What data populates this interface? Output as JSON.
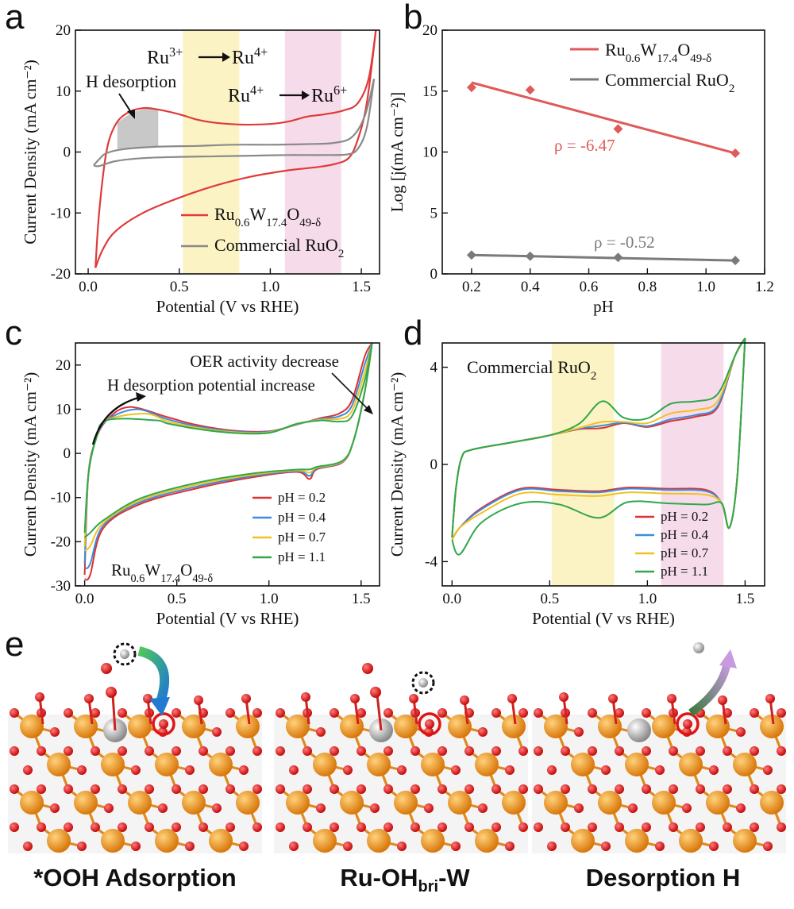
{
  "panels": {
    "a": {
      "letter": "a"
    },
    "b": {
      "letter": "b"
    },
    "c": {
      "letter": "c"
    },
    "d": {
      "letter": "d"
    },
    "e": {
      "letter": "e"
    }
  },
  "chart_data": [
    {
      "id": "a",
      "type": "line",
      "xlabel": "Potential (V vs RHE)",
      "ylabel": "Current Density (mA cm⁻²)",
      "xlim": [
        -0.07,
        1.6
      ],
      "ylim": [
        -20,
        20
      ],
      "xticks": [
        "0.0",
        "0.5",
        "1.0",
        "1.5"
      ],
      "yticks": [
        "-20",
        "-10",
        "0",
        "10",
        "20"
      ],
      "annotations": {
        "h_desorption": "H desorption",
        "ru3": "Ru",
        "ru3_sup": "3+",
        "ru4a": "Ru",
        "ru4a_sup": "4+",
        "ru4b": "Ru",
        "ru4b_sup": "4+",
        "ru6": "Ru",
        "ru6_sup": "6+"
      },
      "bands": [
        {
          "x0": 0.52,
          "x1": 0.83,
          "color": "#fbf3c4"
        },
        {
          "x0": 1.08,
          "x1": 1.39,
          "color": "#f6dcea"
        }
      ],
      "legend": [
        {
          "main": "Ru",
          "s1": "0.6",
          "m2": "W",
          "s2": "17.4",
          "m3": "O",
          "s3": "49-δ",
          "color": "#e03a3a"
        },
        {
          "main": "Commercial RuO",
          "s1": "2",
          "color": "#8a8a8a"
        }
      ],
      "series": [
        {
          "color": "#e03a3a",
          "upper": [
            [
              0.04,
              -19
            ],
            [
              0.06,
              -10
            ],
            [
              0.1,
              0
            ],
            [
              0.15,
              4.5
            ],
            [
              0.22,
              6.5
            ],
            [
              0.3,
              7.2
            ],
            [
              0.38,
              7
            ],
            [
              0.5,
              6.2
            ],
            [
              0.6,
              5.3
            ],
            [
              0.7,
              4.8
            ],
            [
              0.85,
              4.5
            ],
            [
              1.0,
              4.6
            ],
            [
              1.1,
              5.0
            ],
            [
              1.2,
              5.8
            ],
            [
              1.3,
              6.2
            ],
            [
              1.4,
              6.8
            ],
            [
              1.48,
              8
            ],
            [
              1.54,
              12
            ],
            [
              1.58,
              20
            ]
          ],
          "lower": [
            [
              0.04,
              -19
            ],
            [
              0.08,
              -16
            ],
            [
              0.15,
              -13
            ],
            [
              0.3,
              -10
            ],
            [
              0.5,
              -7.5
            ],
            [
              0.7,
              -5.5
            ],
            [
              0.9,
              -4
            ],
            [
              1.1,
              -3
            ],
            [
              1.25,
              -2.5
            ],
            [
              1.35,
              -2
            ],
            [
              1.43,
              -1
            ],
            [
              1.48,
              2
            ],
            [
              1.53,
              8
            ],
            [
              1.58,
              20
            ]
          ]
        },
        {
          "color": "#8a8a8a",
          "upper": [
            [
              0.03,
              -2.2
            ],
            [
              0.06,
              -1.2
            ],
            [
              0.1,
              -0.2
            ],
            [
              0.2,
              0.5
            ],
            [
              0.4,
              0.9
            ],
            [
              0.6,
              1.0
            ],
            [
              0.8,
              1.2
            ],
            [
              1.0,
              1.2
            ],
            [
              1.2,
              1.3
            ],
            [
              1.35,
              1.5
            ],
            [
              1.45,
              2.5
            ],
            [
              1.52,
              6
            ],
            [
              1.57,
              12
            ]
          ],
          "lower": [
            [
              0.03,
              -2.2
            ],
            [
              0.06,
              -2.3
            ],
            [
              0.15,
              -1.5
            ],
            [
              0.3,
              -1.0
            ],
            [
              0.5,
              -0.8
            ],
            [
              0.7,
              -0.7
            ],
            [
              0.9,
              -0.6
            ],
            [
              1.1,
              -0.5
            ],
            [
              1.3,
              -0.5
            ],
            [
              1.42,
              -0.4
            ],
            [
              1.48,
              0.5
            ],
            [
              1.53,
              4
            ],
            [
              1.57,
              12
            ]
          ]
        }
      ]
    },
    {
      "id": "b",
      "type": "scatter",
      "xlabel": "pH",
      "ylabel": "Log [j(mA cm⁻²)]",
      "xlim": [
        0.1,
        1.2
      ],
      "ylim": [
        0,
        20
      ],
      "xticks": [
        "0.2",
        "0.4",
        "0.6",
        "0.8",
        "1.0",
        "1.2"
      ],
      "yticks": [
        "0",
        "5",
        "10",
        "15",
        "20"
      ],
      "series": [
        {
          "legend": {
            "main": "Ru",
            "s1": "0.6",
            "m2": "W",
            "s2": "17.4",
            "m3": "O",
            "s3": "49-δ"
          },
          "color": "#e05a5a",
          "x": [
            0.2,
            0.4,
            0.7,
            1.1
          ],
          "y": [
            15.3,
            15.1,
            11.9,
            9.9
          ],
          "fit": [
            [
              0.2,
              15.7
            ],
            [
              1.1,
              9.9
            ]
          ],
          "rho": "ρ = -6.47"
        },
        {
          "legend": {
            "main": "Commercial RuO",
            "s1": "2"
          },
          "color": "#7a7a7a",
          "x": [
            0.2,
            0.4,
            0.7,
            1.1
          ],
          "y": [
            1.55,
            1.45,
            1.35,
            1.1
          ],
          "fit": [
            [
              0.2,
              1.55
            ],
            [
              1.1,
              1.1
            ]
          ],
          "rho": "ρ = -0.52"
        }
      ]
    },
    {
      "id": "c",
      "type": "line",
      "xlabel": "Potential (V vs RHE)",
      "ylabel": "Current Density (mA cm⁻²)",
      "xlim": [
        -0.05,
        1.6
      ],
      "ylim": [
        -30,
        25
      ],
      "xticks": [
        "0.0",
        "0.5",
        "1.0",
        "1.5"
      ],
      "yticks": [
        "-30",
        "-20",
        "-10",
        "0",
        "10",
        "20"
      ],
      "annotations": {
        "oer": "OER activity decrease",
        "hdes": "H desorption potential increase",
        "catalyst": {
          "main": "Ru",
          "s1": "0.6",
          "m2": "W",
          "s2": "17.4",
          "m3": "O",
          "s3": "49-δ"
        }
      },
      "series": [
        {
          "name": "pH = 0.2",
          "color": "#e03030",
          "ymin": -28.5,
          "peak": [
            0.24,
            10.5
          ]
        },
        {
          "name": "pH = 0.4",
          "color": "#3a8de0",
          "ymin": -26,
          "peak": [
            0.28,
            10
          ]
        },
        {
          "name": "pH = 0.7",
          "color": "#f2c020",
          "ymin": -22,
          "peak": [
            0.33,
            9
          ]
        },
        {
          "name": "pH = 1.1",
          "color": "#30a84a",
          "ymin": -19,
          "peak": [
            0.38,
            7.5
          ]
        }
      ]
    },
    {
      "id": "d",
      "type": "line",
      "xlabel": "Potential (V vs RHE)",
      "ylabel": "Current Density (mA cm⁻²)",
      "xlim": [
        -0.05,
        1.6
      ],
      "ylim": [
        -5,
        5
      ],
      "xticks": [
        "0.0",
        "0.5",
        "1.0",
        "1.5"
      ],
      "yticks": [
        "-4",
        "0",
        "4"
      ],
      "title": {
        "main": "Commercial RuO",
        "s1": "2"
      },
      "bands": [
        {
          "x0": 0.51,
          "x1": 0.83,
          "color": "#fbf3c4"
        },
        {
          "x0": 1.07,
          "x1": 1.39,
          "color": "#f6dcea"
        }
      ],
      "series": [
        {
          "name": "pH = 0.2",
          "color": "#e03030",
          "hump": 1.5,
          "low": -1.0,
          "ox": 0.1
        },
        {
          "name": "pH = 0.4",
          "color": "#3a8de0",
          "hump": 1.6,
          "low": -1.05,
          "ox": 0.2
        },
        {
          "name": "pH = 0.7",
          "color": "#f2c020",
          "hump": 1.75,
          "low": -1.2,
          "ox": 0.5
        },
        {
          "name": "pH = 1.1",
          "color": "#30a84a",
          "hump": 2.6,
          "low": -1.6,
          "ox": 1.0
        }
      ]
    }
  ],
  "structures": [
    {
      "label": "*OOH Adsorption"
    },
    {
      "label_main": "Ru-OH",
      "label_sub": "bri",
      "label_end": "-W"
    },
    {
      "label": "Desorption H"
    }
  ]
}
